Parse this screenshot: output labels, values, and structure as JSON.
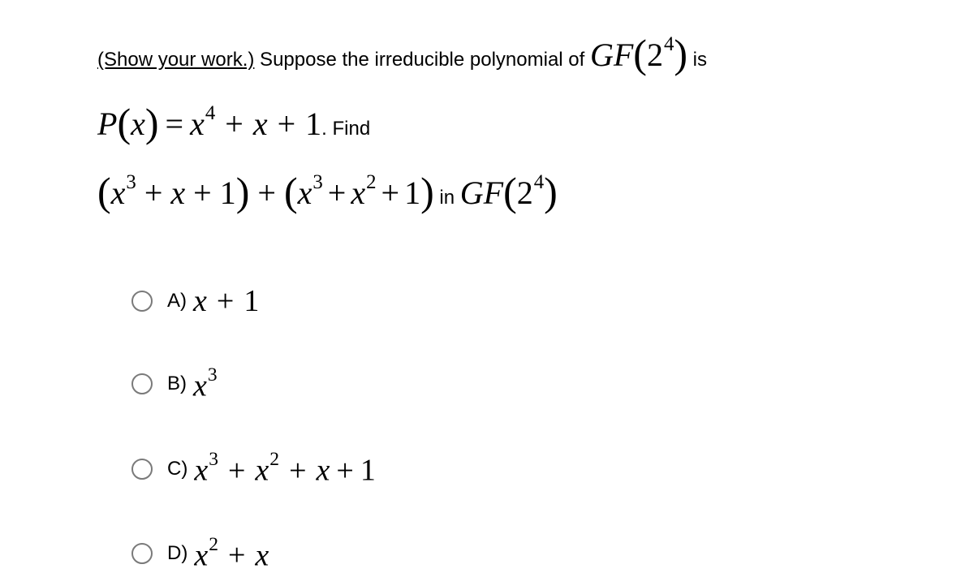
{
  "prompt": {
    "show_work": "(Show your work.)",
    "t1": " Suppose the irreducible polynomial of ",
    "t2": " is",
    "t3": ". Find",
    "t4": "   in "
  },
  "math": {
    "gf": "GF",
    "two": "2",
    "four": "4",
    "P": "P",
    "x": "x",
    "one": "1",
    "two_n": "2",
    "three": "3",
    "eq": "=",
    "plus": "+",
    "lp": "(",
    "rp": ")"
  },
  "options": {
    "a_letter": "A) ",
    "b_letter": "B) ",
    "c_letter": "C) ",
    "d_letter": "D) "
  }
}
